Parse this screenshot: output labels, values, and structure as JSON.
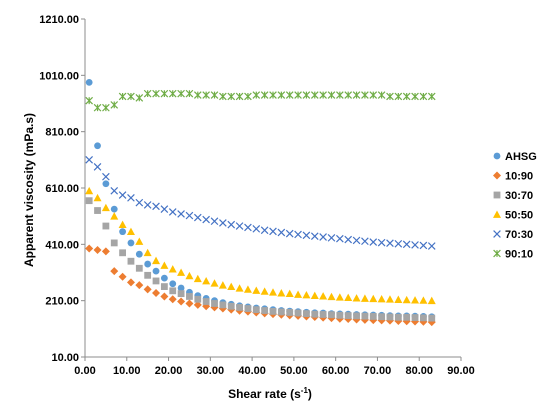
{
  "chart_data": {
    "type": "scatter",
    "xlabel": "Shear rate (s",
    "xlabel_sup": "-1",
    "xlabel_end": ")",
    "ylabel": "Apparent viscosity (mPa.s)",
    "xlim": [
      0,
      90
    ],
    "ylim": [
      10,
      1210
    ],
    "x_ticks": [
      "0.00",
      "10.00",
      "20.00",
      "30.00",
      "40.00",
      "50.00",
      "60.00",
      "70.00",
      "80.00",
      "90.00"
    ],
    "y_ticks": [
      "10.00",
      "210.00",
      "410.00",
      "610.00",
      "810.00",
      "1010.00",
      "1210.00"
    ],
    "x_tick_values": [
      0,
      10,
      20,
      30,
      40,
      50,
      60,
      70,
      80,
      90
    ],
    "y_tick_values": [
      10,
      210,
      410,
      610,
      810,
      1010,
      1210
    ],
    "grid": false,
    "legend_position": "right",
    "x": [
      1,
      3,
      5,
      7,
      9,
      11,
      13,
      15,
      17,
      19,
      21,
      23,
      25,
      27,
      29,
      31,
      33,
      35,
      37,
      39,
      41,
      43,
      45,
      47,
      49,
      51,
      53,
      55,
      57,
      59,
      61,
      63,
      65,
      67,
      69,
      71,
      73,
      75,
      77,
      79,
      81,
      83
    ],
    "series": [
      {
        "name": "AHSG",
        "marker": "circle",
        "color": "#5B9BD5",
        "values": [
          985,
          760,
          625,
          535,
          455,
          415,
          375,
          340,
          315,
          290,
          270,
          255,
          240,
          228,
          218,
          210,
          203,
          197,
          192,
          188,
          184,
          181,
          178,
          175,
          173,
          171,
          169,
          167,
          166,
          164,
          163,
          162,
          161,
          160,
          159,
          158,
          157,
          156,
          156,
          155,
          154,
          153
        ]
      },
      {
        "name": "10:90",
        "marker": "diamond",
        "color": "#ED7D31",
        "values": [
          395,
          390,
          385,
          315,
          295,
          275,
          265,
          250,
          237,
          225,
          215,
          207,
          200,
          195,
          190,
          186,
          182,
          178,
          174,
          171,
          168,
          165,
          162,
          160,
          158,
          156,
          154,
          152,
          150,
          148,
          146,
          145,
          143,
          142,
          141,
          140,
          139,
          138,
          137,
          136,
          135,
          134
        ]
      },
      {
        "name": "30:70",
        "marker": "square",
        "color": "#A5A5A5",
        "values": [
          565,
          530,
          475,
          415,
          380,
          350,
          325,
          300,
          280,
          260,
          245,
          235,
          225,
          215,
          207,
          200,
          195,
          190,
          186,
          182,
          178,
          175,
          172,
          170,
          168,
          166,
          164,
          162,
          161,
          160,
          158,
          157,
          156,
          155,
          154,
          153,
          152,
          151,
          151,
          150,
          149,
          148
        ]
      },
      {
        "name": "50:50",
        "marker": "triangle",
        "color": "#FFC000",
        "values": [
          600,
          575,
          540,
          510,
          480,
          455,
          420,
          380,
          352,
          335,
          322,
          310,
          298,
          288,
          280,
          272,
          265,
          260,
          254,
          250,
          246,
          243,
          240,
          237,
          235,
          232,
          230,
          228,
          226,
          224,
          222,
          221,
          219,
          218,
          217,
          216,
          215,
          214,
          213,
          212,
          211,
          210
        ]
      },
      {
        "name": "70:30",
        "marker": "x",
        "color": "#4472C4",
        "values": [
          710,
          685,
          650,
          600,
          585,
          575,
          558,
          550,
          545,
          535,
          525,
          518,
          512,
          505,
          498,
          492,
          486,
          480,
          475,
          470,
          465,
          460,
          456,
          452,
          448,
          445,
          442,
          439,
          436,
          433,
          430,
          427,
          424,
          421,
          418,
          416,
          414,
          412,
          410,
          408,
          406,
          404
        ]
      },
      {
        "name": "90:10",
        "marker": "star",
        "color": "#70AD47",
        "values": [
          920,
          895,
          895,
          905,
          935,
          935,
          930,
          945,
          945,
          945,
          945,
          945,
          945,
          940,
          940,
          940,
          935,
          935,
          935,
          935,
          940,
          940,
          940,
          940,
          940,
          940,
          940,
          940,
          940,
          940,
          940,
          940,
          940,
          940,
          940,
          940,
          935,
          935,
          935,
          935,
          935,
          935
        ]
      }
    ]
  }
}
